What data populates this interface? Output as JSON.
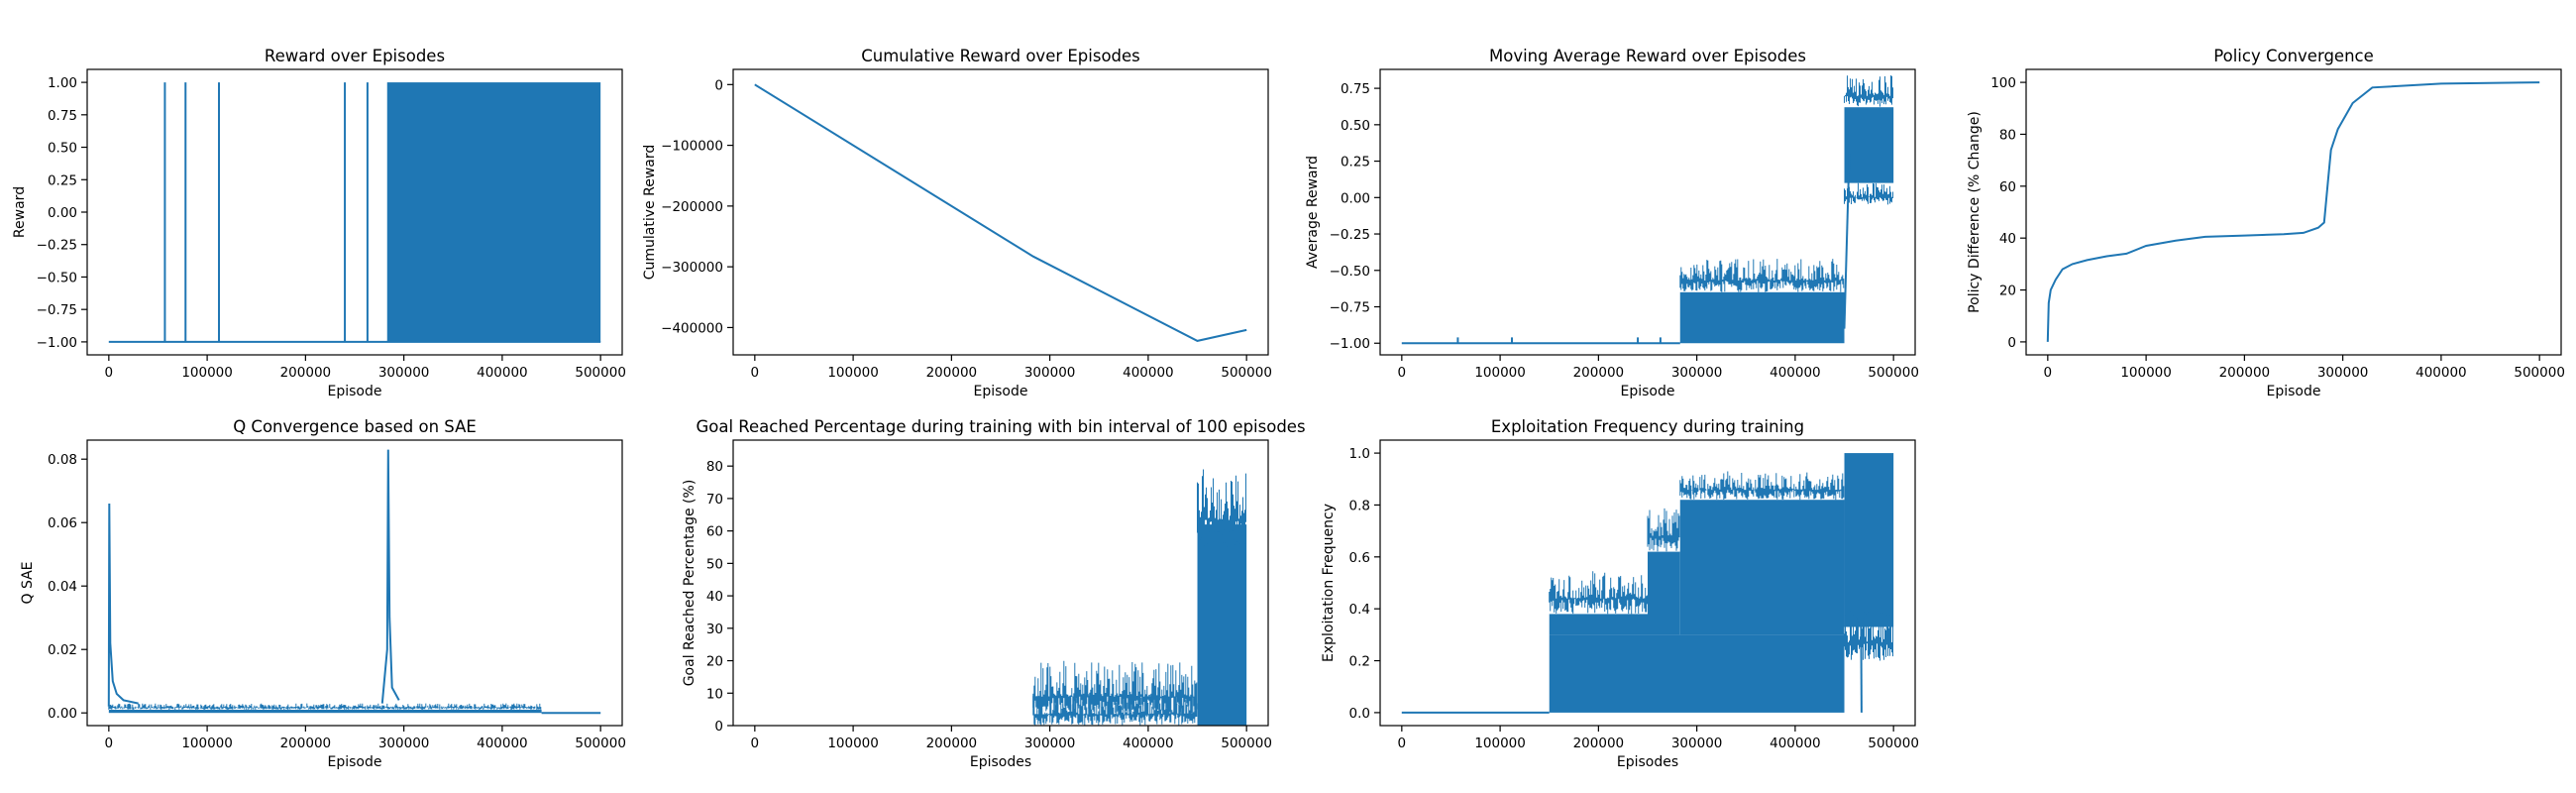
{
  "figure": {
    "suptitle": ""
  },
  "colors": {
    "series": "#1f77b4",
    "axes": "#000000",
    "background": "#ffffff"
  },
  "chart_data": [
    {
      "id": "p1",
      "type": "line",
      "title": "Reward over Episodes",
      "xlabel": "Episode",
      "ylabel": "Reward",
      "xlim": [
        -22000,
        522000
      ],
      "ylim": [
        -1.1,
        1.1
      ],
      "xticks": [
        0,
        100000,
        200000,
        300000,
        400000,
        500000
      ],
      "xtick_labels": [
        "0",
        "100000",
        "200000",
        "300000",
        "400000",
        "500000"
      ],
      "yticks": [
        -1.0,
        -0.75,
        -0.5,
        -0.25,
        0.0,
        0.25,
        0.5,
        0.75,
        1.0
      ],
      "ytick_labels": [
        "−1.00",
        "−0.75",
        "−0.50",
        "−0.25",
        "0.00",
        "0.25",
        "0.50",
        "0.75",
        "1.00"
      ],
      "series": [
        {
          "kind": "line",
          "points": [
            [
              0,
              -1
            ],
            [
              500000,
              -1
            ]
          ]
        },
        {
          "kind": "spikes",
          "x": [
            57000,
            78000,
            112000,
            240000,
            263000
          ],
          "base": -1,
          "top": 1
        },
        {
          "kind": "band",
          "x0": 283000,
          "x1": 500000,
          "y0": -1,
          "y1": 1
        }
      ]
    },
    {
      "id": "p2",
      "type": "line",
      "title": "Cumulative Reward over Episodes",
      "xlabel": "Episode",
      "ylabel": "Cumulative Reward",
      "xlim": [
        -22000,
        522000
      ],
      "ylim": [
        -445000,
        25000
      ],
      "xticks": [
        0,
        100000,
        200000,
        300000,
        400000,
        500000
      ],
      "xtick_labels": [
        "0",
        "100000",
        "200000",
        "300000",
        "400000",
        "500000"
      ],
      "yticks": [
        -400000,
        -300000,
        -200000,
        -100000,
        0
      ],
      "ytick_labels": [
        "−400000",
        "−300000",
        "−200000",
        "−100000",
        "0"
      ],
      "series": [
        {
          "kind": "line",
          "points": [
            [
              0,
              0
            ],
            [
              283000,
              -283000
            ],
            [
              450000,
              -422000
            ],
            [
              500000,
              -404000
            ]
          ]
        }
      ]
    },
    {
      "id": "p3",
      "type": "line",
      "title": "Moving Average Reward over Episodes",
      "xlabel": "Episode",
      "ylabel": "Average Reward",
      "xlim": [
        -22000,
        522000
      ],
      "ylim": [
        -1.08,
        0.88
      ],
      "xticks": [
        0,
        100000,
        200000,
        300000,
        400000,
        500000
      ],
      "xtick_labels": [
        "0",
        "100000",
        "200000",
        "300000",
        "400000",
        "500000"
      ],
      "yticks": [
        -1.0,
        -0.75,
        -0.5,
        -0.25,
        0.0,
        0.25,
        0.5,
        0.75
      ],
      "ytick_labels": [
        "−1.00",
        "−0.75",
        "−0.50",
        "−0.25",
        "0.00",
        "0.25",
        "0.50",
        "0.75"
      ],
      "series": [
        {
          "kind": "line",
          "points": [
            [
              0,
              -1
            ],
            [
              283000,
              -1
            ]
          ]
        },
        {
          "kind": "spikes",
          "x": [
            57000,
            112000,
            240000,
            263000
          ],
          "base": -1,
          "top": -0.96
        },
        {
          "kind": "band",
          "x0": 283000,
          "x1": 450000,
          "y0": -1,
          "y1": -0.65
        },
        {
          "kind": "fringe",
          "x0": 283000,
          "x1": 450000,
          "y0": -0.65,
          "y1": -0.42
        },
        {
          "kind": "band",
          "x0": 450000,
          "x1": 500000,
          "y0": 0.1,
          "y1": 0.62
        },
        {
          "kind": "fringe",
          "x0": 450000,
          "x1": 500000,
          "y0": 0.62,
          "y1": 0.84
        },
        {
          "kind": "fringe",
          "x0": 450000,
          "x1": 500000,
          "y0": -0.05,
          "y1": 0.1
        },
        {
          "kind": "line",
          "points": [
            [
              450000,
              -0.9
            ],
            [
              455000,
              0.3
            ]
          ]
        }
      ]
    },
    {
      "id": "p4",
      "type": "line",
      "title": "Policy Convergence",
      "xlabel": "Episode",
      "ylabel": "Policy Difference (% Change)",
      "xlim": [
        -22000,
        522000
      ],
      "ylim": [
        -5,
        105
      ],
      "xticks": [
        0,
        100000,
        200000,
        300000,
        400000,
        500000
      ],
      "xtick_labels": [
        "0",
        "100000",
        "200000",
        "300000",
        "400000",
        "500000"
      ],
      "yticks": [
        0,
        20,
        40,
        60,
        80,
        100
      ],
      "ytick_labels": [
        "0",
        "20",
        "40",
        "60",
        "80",
        "100"
      ],
      "series": [
        {
          "kind": "line",
          "points": [
            [
              0,
              0
            ],
            [
              1000,
              15
            ],
            [
              3000,
              20
            ],
            [
              8000,
              24
            ],
            [
              15000,
              28
            ],
            [
              25000,
              30
            ],
            [
              40000,
              31.5
            ],
            [
              60000,
              33
            ],
            [
              80000,
              34
            ],
            [
              100000,
              37
            ],
            [
              130000,
              39
            ],
            [
              160000,
              40.5
            ],
            [
              200000,
              41
            ],
            [
              240000,
              41.5
            ],
            [
              260000,
              42
            ],
            [
              275000,
              44
            ],
            [
              281000,
              46
            ],
            [
              285000,
              62
            ],
            [
              288000,
              74
            ],
            [
              295000,
              82
            ],
            [
              310000,
              92
            ],
            [
              330000,
              98
            ],
            [
              400000,
              99.5
            ],
            [
              500000,
              100
            ]
          ]
        }
      ]
    },
    {
      "id": "p5",
      "type": "line",
      "title": "Q Convergence based on SAE",
      "xlabel": "Episode",
      "ylabel": "Q SAE",
      "xlim": [
        -22000,
        522000
      ],
      "ylim": [
        -0.004,
        0.086
      ],
      "xticks": [
        0,
        100000,
        200000,
        300000,
        400000,
        500000
      ],
      "xtick_labels": [
        "0",
        "100000",
        "200000",
        "300000",
        "400000",
        "500000"
      ],
      "yticks": [
        0.0,
        0.02,
        0.04,
        0.06,
        0.08
      ],
      "ytick_labels": [
        "0.00",
        "0.02",
        "0.04",
        "0.06",
        "0.08"
      ],
      "series": [
        {
          "kind": "band",
          "x0": 0,
          "x1": 440000,
          "y0": 0,
          "y1": 0.001
        },
        {
          "kind": "fringe",
          "x0": 0,
          "x1": 440000,
          "y0": 0.001,
          "y1": 0.003
        },
        {
          "kind": "line",
          "points": [
            [
              0,
              0.002
            ],
            [
              500,
              0.066
            ],
            [
              1500,
              0.022
            ],
            [
              4000,
              0.01
            ],
            [
              8000,
              0.006
            ],
            [
              15000,
              0.004
            ],
            [
              30000,
              0.003
            ]
          ]
        },
        {
          "kind": "line",
          "points": [
            [
              278000,
              0.003
            ],
            [
              283000,
              0.02
            ],
            [
              284000,
              0.083
            ],
            [
              285500,
              0.03
            ],
            [
              288000,
              0.008
            ],
            [
              295000,
              0.004
            ]
          ]
        },
        {
          "kind": "line",
          "points": [
            [
              440000,
              0
            ],
            [
              500000,
              0
            ]
          ]
        }
      ]
    },
    {
      "id": "p6",
      "type": "bar",
      "title": "Goal Reached Percentage during training with bin interval of 100 episodes",
      "xlabel": "Episodes",
      "ylabel": "Goal Reached Percentage (%)",
      "xlim": [
        -22000,
        522000
      ],
      "ylim": [
        0,
        88
      ],
      "xticks": [
        0,
        100000,
        200000,
        300000,
        400000,
        500000
      ],
      "xtick_labels": [
        "0",
        "100000",
        "200000",
        "300000",
        "400000",
        "500000"
      ],
      "yticks": [
        0,
        10,
        20,
        30,
        40,
        50,
        60,
        70,
        80
      ],
      "ytick_labels": [
        "0",
        "10",
        "20",
        "30",
        "40",
        "50",
        "60",
        "70",
        "80"
      ],
      "series": [
        {
          "kind": "fringe",
          "x0": 283000,
          "x1": 450000,
          "y0": 0,
          "y1": 10
        },
        {
          "kind": "fringe",
          "x0": 283000,
          "x1": 450000,
          "y0": 3,
          "y1": 20
        },
        {
          "kind": "band",
          "x0": 450000,
          "x1": 500000,
          "y0": 0,
          "y1": 62
        },
        {
          "kind": "fringe",
          "x0": 450000,
          "x1": 500000,
          "y0": 55,
          "y1": 79
        }
      ]
    },
    {
      "id": "p7",
      "type": "line",
      "title": "Exploitation Frequency during training",
      "xlabel": "Episodes",
      "ylabel": "Exploitation Frequency",
      "xlim": [
        -22000,
        522000
      ],
      "ylim": [
        -0.05,
        1.05
      ],
      "xticks": [
        0,
        100000,
        200000,
        300000,
        400000,
        500000
      ],
      "xtick_labels": [
        "0",
        "100000",
        "200000",
        "300000",
        "400000",
        "500000"
      ],
      "yticks": [
        0.0,
        0.2,
        0.4,
        0.6,
        0.8,
        1.0
      ],
      "ytick_labels": [
        "0.0",
        "0.2",
        "0.4",
        "0.6",
        "0.8",
        "1.0"
      ],
      "series": [
        {
          "kind": "line",
          "points": [
            [
              0,
              0
            ],
            [
              150000,
              0
            ]
          ]
        },
        {
          "kind": "band",
          "x0": 150000,
          "x1": 450000,
          "y0": 0,
          "y1": 0.3
        },
        {
          "kind": "band",
          "x0": 150000,
          "x1": 250000,
          "y0": 0.3,
          "y1": 0.38
        },
        {
          "kind": "fringe",
          "x0": 150000,
          "x1": 250000,
          "y0": 0.38,
          "y1": 0.55
        },
        {
          "kind": "band",
          "x0": 250000,
          "x1": 283000,
          "y0": 0.3,
          "y1": 0.62
        },
        {
          "kind": "fringe",
          "x0": 250000,
          "x1": 283000,
          "y0": 0.62,
          "y1": 0.79
        },
        {
          "kind": "band",
          "x0": 283000,
          "x1": 450000,
          "y0": 0.3,
          "y1": 0.82
        },
        {
          "kind": "fringe",
          "x0": 283000,
          "x1": 450000,
          "y0": 0.82,
          "y1": 0.93
        },
        {
          "kind": "band",
          "x0": 450000,
          "x1": 500000,
          "y0": 0.33,
          "y1": 1.0
        },
        {
          "kind": "fringe",
          "x0": 450000,
          "x1": 500000,
          "y0": 0.2,
          "y1": 0.4
        },
        {
          "kind": "line",
          "points": [
            [
              467000,
              0.33
            ],
            [
              467500,
              0
            ]
          ]
        }
      ]
    }
  ]
}
